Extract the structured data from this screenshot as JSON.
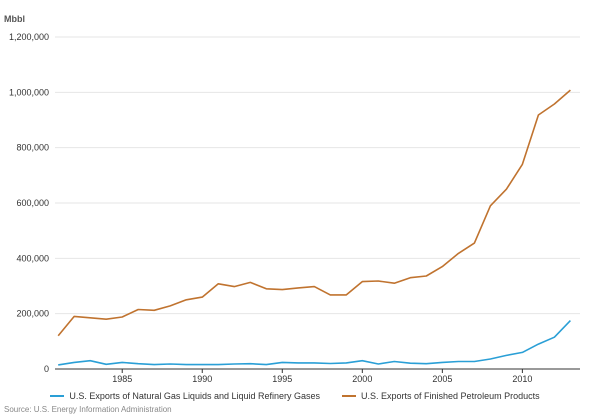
{
  "chart_data": {
    "type": "line",
    "title": "",
    "xlabel": "",
    "ylabel": "Mbbl",
    "x": [
      1981,
      1982,
      1983,
      1984,
      1985,
      1986,
      1987,
      1988,
      1989,
      1990,
      1991,
      1992,
      1993,
      1994,
      1995,
      1996,
      1997,
      1998,
      1999,
      2000,
      2001,
      2002,
      2003,
      2004,
      2005,
      2006,
      2007,
      2008,
      2009,
      2010,
      2011,
      2012,
      2013
    ],
    "xticks": [
      1985,
      1990,
      1995,
      2000,
      2005,
      2010
    ],
    "xtick_labels": [
      "1985",
      "1990",
      "1995",
      "2000",
      "2005",
      "2010"
    ],
    "xlim": [
      1980.8,
      2013.6
    ],
    "ylim": [
      0,
      1200000
    ],
    "yticks": [
      0,
      200000,
      400000,
      600000,
      800000,
      1000000,
      1200000
    ],
    "ytick_labels": [
      "0",
      "200,000",
      "400,000",
      "600,000",
      "800,000",
      "1,000,000",
      "1,200,000"
    ],
    "grid": true,
    "legend_position": "bottom",
    "series": [
      {
        "name": "U.S. Exports of Natural Gas Liquids and Liquid Refinery Gases",
        "color": "#2a9fd6",
        "values": [
          15000,
          24000,
          30000,
          17000,
          24000,
          19000,
          16000,
          18000,
          16000,
          16000,
          16000,
          18000,
          19000,
          16000,
          24000,
          22000,
          22000,
          20000,
          22000,
          30000,
          18000,
          27000,
          21000,
          19000,
          24000,
          27000,
          27000,
          36000,
          49000,
          60000,
          90000,
          115000,
          175000
        ]
      },
      {
        "name": "U.S. Exports of Finished Petroleum Products",
        "color": "#c0732f",
        "values": [
          120000,
          190000,
          185000,
          180000,
          188000,
          215000,
          212000,
          228000,
          250000,
          260000,
          308000,
          298000,
          313000,
          290000,
          287000,
          293000,
          298000,
          268000,
          268000,
          316000,
          318000,
          310000,
          330000,
          336000,
          370000,
          418000,
          455000,
          590000,
          650000,
          740000,
          918000,
          958000,
          1008000
        ]
      }
    ]
  },
  "source": "Source: U.S. Energy Information Administration"
}
